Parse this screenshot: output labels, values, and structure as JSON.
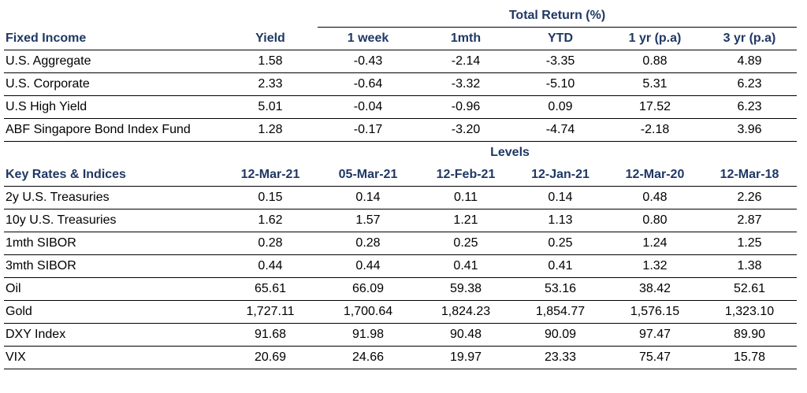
{
  "fixed_income": {
    "group_header": "Total Return (%)",
    "header": [
      "Fixed Income",
      "Yield",
      "1 week",
      "1mth",
      "YTD",
      "1 yr (p.a)",
      "3 yr (p.a)"
    ],
    "rows": [
      [
        "U.S. Aggregate",
        "1.58",
        "-0.43",
        "-2.14",
        "-3.35",
        "0.88",
        "4.89"
      ],
      [
        "U.S. Corporate",
        "2.33",
        "-0.64",
        "-3.32",
        "-5.10",
        "5.31",
        "6.23"
      ],
      [
        "U.S High Yield",
        "5.01",
        "-0.04",
        "-0.96",
        "0.09",
        "17.52",
        "6.23"
      ],
      [
        "ABF Singapore Bond Index Fund",
        "1.28",
        "-0.17",
        "-3.20",
        "-4.74",
        "-2.18",
        "3.96"
      ]
    ]
  },
  "key_rates": {
    "group_header": "Levels",
    "header": [
      "Key Rates & Indices",
      "12-Mar-21",
      "05-Mar-21",
      "12-Feb-21",
      "12-Jan-21",
      "12-Mar-20",
      "12-Mar-18"
    ],
    "rows": [
      [
        "2y U.S. Treasuries",
        "0.15",
        "0.14",
        "0.11",
        "0.14",
        "0.48",
        "2.26"
      ],
      [
        "10y U.S. Treasuries",
        "1.62",
        "1.57",
        "1.21",
        "1.13",
        "0.80",
        "2.87"
      ],
      [
        "1mth SIBOR",
        "0.28",
        "0.28",
        "0.25",
        "0.25",
        "1.24",
        "1.25"
      ],
      [
        "3mth SIBOR",
        "0.44",
        "0.44",
        "0.41",
        "0.41",
        "1.32",
        "1.38"
      ],
      [
        "Oil",
        "65.61",
        "66.09",
        "59.38",
        "53.16",
        "38.42",
        "52.61"
      ],
      [
        "Gold",
        "1,727.11",
        "1,700.64",
        "1,824.23",
        "1,854.77",
        "1,576.15",
        "1,323.10"
      ],
      [
        "DXY Index",
        "91.68",
        "91.98",
        "90.48",
        "90.09",
        "97.47",
        "89.90"
      ],
      [
        "VIX",
        "20.69",
        "24.66",
        "19.97",
        "23.33",
        "75.47",
        "15.78"
      ]
    ]
  }
}
